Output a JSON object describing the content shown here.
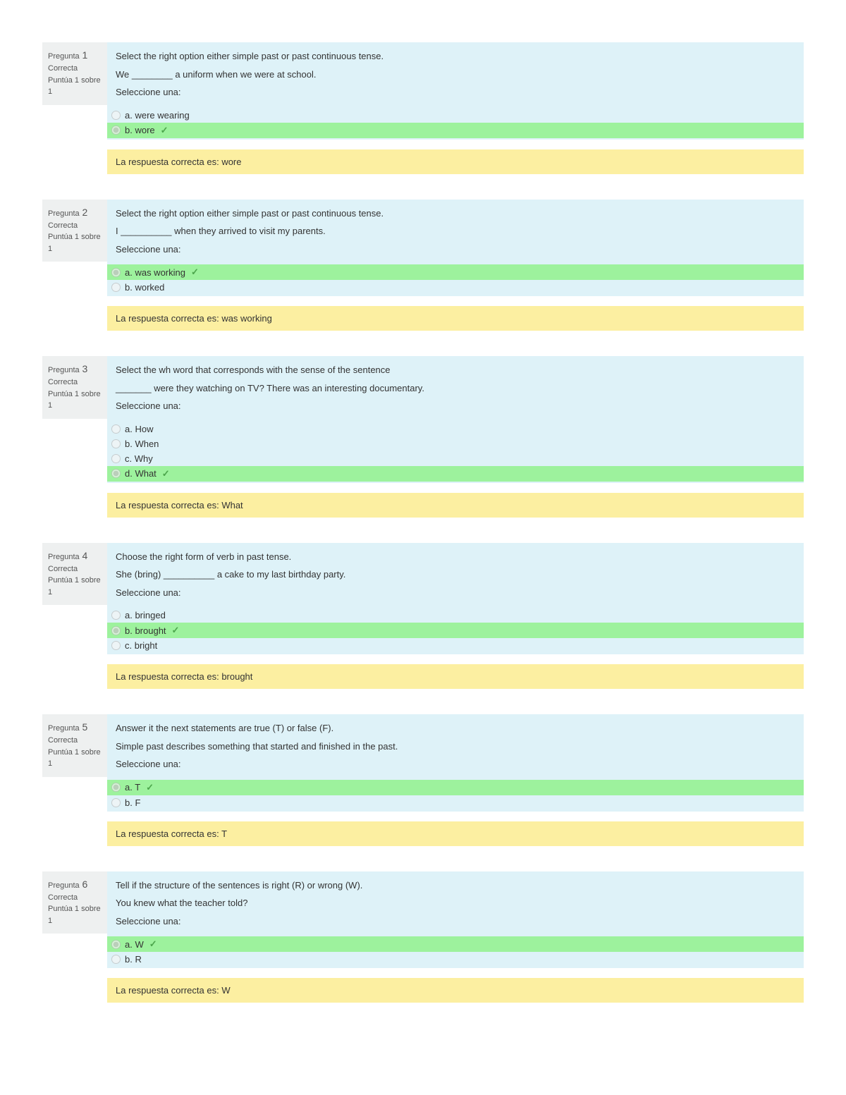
{
  "colors": {
    "info_bg": "#eef0f0",
    "formulation_bg": "#def2f8",
    "correct_bg": "#9df29d",
    "feedback_bg": "#fcefa1",
    "check_color": "#4ca64c"
  },
  "labels": {
    "question_prefix": "Pregunta",
    "state": "Correcta",
    "grade": "Puntúa 1 sobre 1",
    "select_one": "Seleccione una:",
    "feedback_prefix": "La respuesta correcta es:"
  },
  "questions": [
    {
      "number": "1",
      "text_lines": [
        "Select the right option either simple past or past continuous tense.",
        "We ________ a uniform when we were at school."
      ],
      "options": [
        {
          "letter": "a",
          "text": "were wearing",
          "correct": false,
          "selected": false
        },
        {
          "letter": "b",
          "text": "wore",
          "correct": true,
          "selected": true
        }
      ],
      "correct_answer": "wore"
    },
    {
      "number": "2",
      "text_lines": [
        "Select the right option either simple past or past continuous tense.",
        "I __________ when they arrived to visit my parents."
      ],
      "options": [
        {
          "letter": "a",
          "text": "was working",
          "correct": true,
          "selected": true
        },
        {
          "letter": "b",
          "text": "worked",
          "correct": false,
          "selected": false
        }
      ],
      "correct_answer": "was working"
    },
    {
      "number": "3",
      "text_lines": [
        "Select the wh word that corresponds with the sense of the sentence",
        "_______ were they watching on TV? There was an interesting documentary."
      ],
      "options": [
        {
          "letter": "a",
          "text": "How",
          "correct": false,
          "selected": false
        },
        {
          "letter": "b",
          "text": "When",
          "correct": false,
          "selected": false
        },
        {
          "letter": "c",
          "text": "Why",
          "correct": false,
          "selected": false
        },
        {
          "letter": "d",
          "text": "What",
          "correct": true,
          "selected": true
        }
      ],
      "correct_answer": "What"
    },
    {
      "number": "4",
      "text_lines": [
        "Choose the right form of verb in past tense.",
        "She (bring) __________ a cake to my last birthday party."
      ],
      "options": [
        {
          "letter": "a",
          "text": "bringed",
          "correct": false,
          "selected": false
        },
        {
          "letter": "b",
          "text": "brought",
          "correct": true,
          "selected": true
        },
        {
          "letter": "c",
          "text": "bright",
          "correct": false,
          "selected": false
        }
      ],
      "correct_answer": "brought"
    },
    {
      "number": "5",
      "text_lines": [
        "Answer it the next statements are true (T) or false (F).",
        "Simple past describes something that started and finished in the past."
      ],
      "options": [
        {
          "letter": "a",
          "text": "T",
          "correct": true,
          "selected": true
        },
        {
          "letter": "b",
          "text": "F",
          "correct": false,
          "selected": false
        }
      ],
      "correct_answer": "T"
    },
    {
      "number": "6",
      "text_lines": [
        "Tell if the structure of the sentences is right (R) or wrong (W).",
        "You knew what the teacher told?"
      ],
      "options": [
        {
          "letter": "a",
          "text": "W",
          "correct": true,
          "selected": true
        },
        {
          "letter": "b",
          "text": "R",
          "correct": false,
          "selected": false
        }
      ],
      "correct_answer": "W"
    }
  ]
}
